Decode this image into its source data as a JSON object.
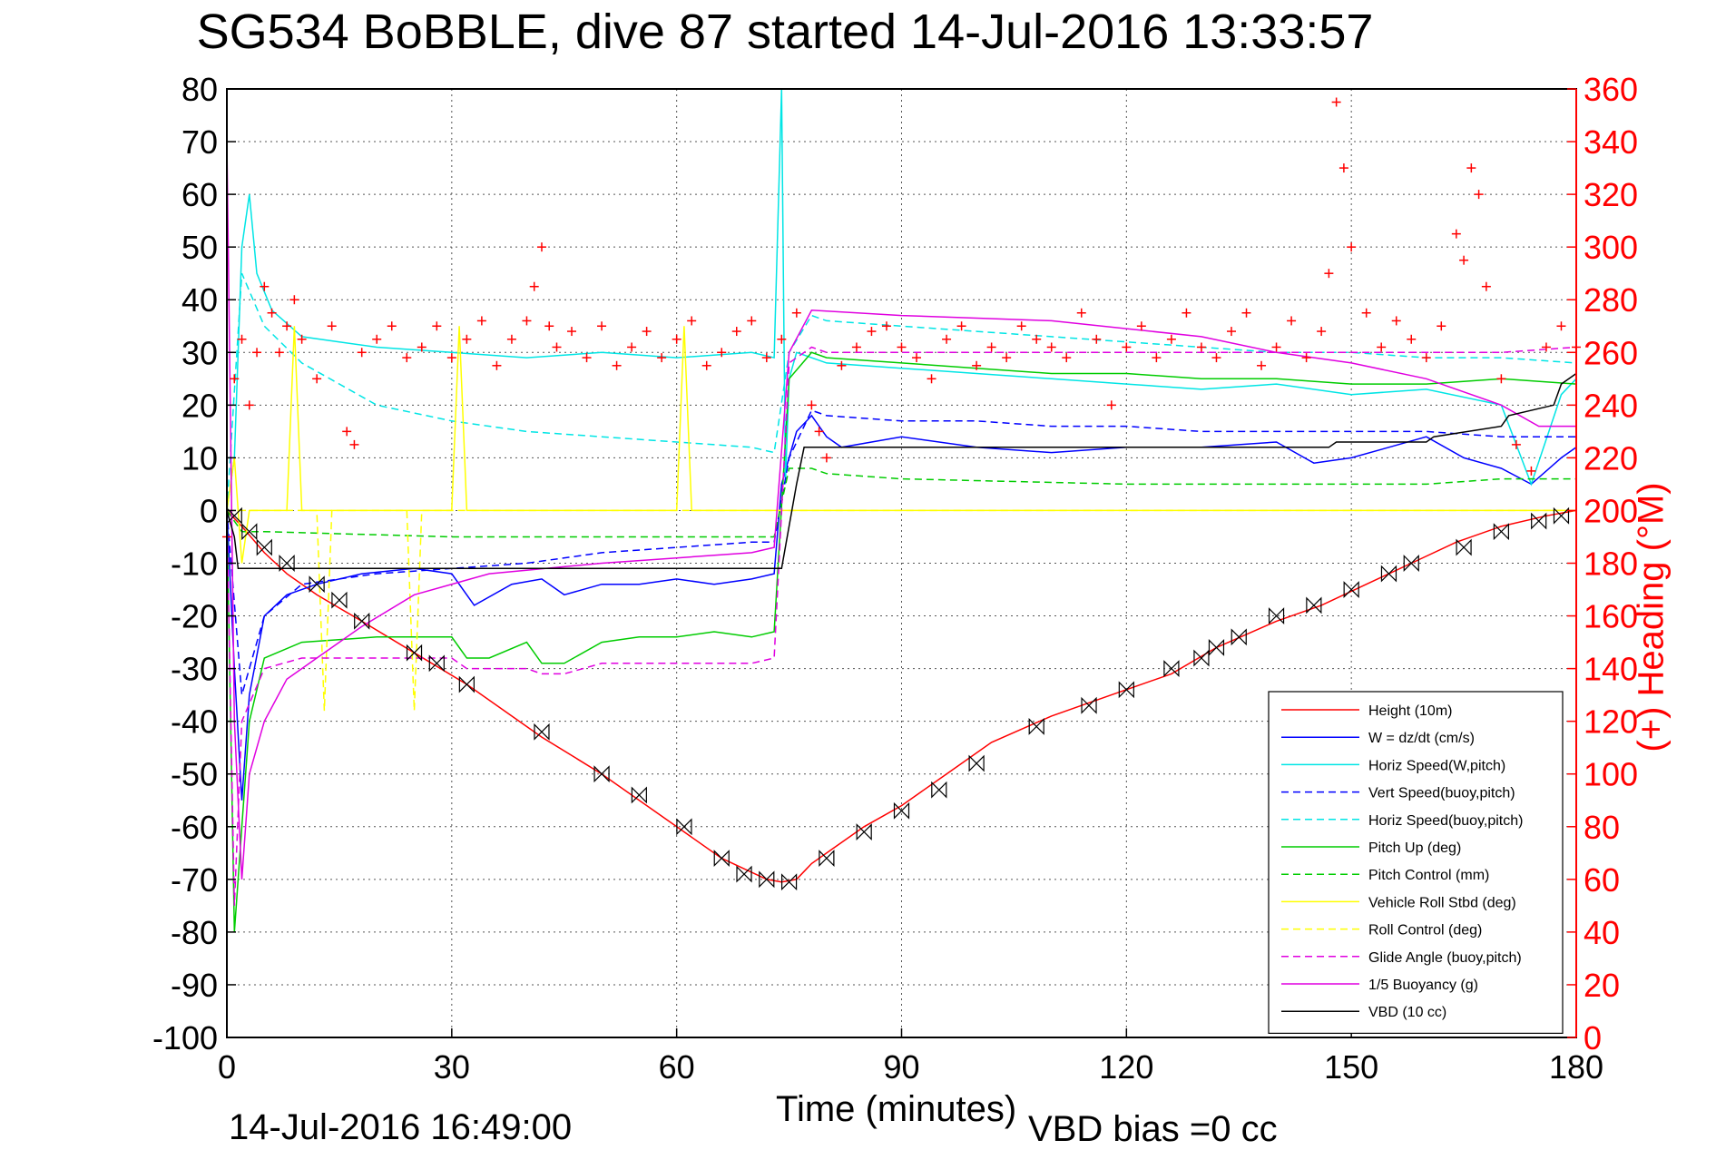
{
  "chart_data": {
    "type": "line",
    "title": "SG534 BoBBLE, dive 87 started 14-Jul-2016 13:33:57",
    "xlabel": "Time (minutes)",
    "ylabel_right": "(+) Heading (°M)",
    "xlim": [
      0,
      180
    ],
    "ylim": [
      -100,
      80
    ],
    "y2lim": [
      0,
      360
    ],
    "grid": true,
    "legend_position": "bottom-right",
    "x_ticks": [
      "0",
      "30",
      "60",
      "90",
      "120",
      "150",
      "180"
    ],
    "y_ticks": [
      "80",
      "70",
      "60",
      "50",
      "40",
      "30",
      "20",
      "10",
      "0",
      "-10",
      "-20",
      "-30",
      "-40",
      "-50",
      "-60",
      "-70",
      "-80",
      "-90",
      "-100"
    ],
    "y2_ticks": [
      "360",
      "340",
      "320",
      "300",
      "280",
      "260",
      "240",
      "220",
      "200",
      "180",
      "160",
      "140",
      "120",
      "100",
      "80",
      "60",
      "40",
      "20",
      "0"
    ],
    "footer_left": "14-Jul-2016 16:49:00",
    "footer_right": "VBD bias =0 cc",
    "colors": {
      "heading": "#ff0000",
      "axis": "#000000",
      "grid": "#888888"
    },
    "series": [
      {
        "name": "Height (10m)",
        "color": "#ff0000",
        "style": "solid",
        "x": [
          0,
          2,
          5,
          8,
          12,
          18,
          25,
          32,
          42,
          50,
          60,
          66,
          72,
          74,
          76,
          78,
          81,
          85,
          90,
          96,
          102,
          110,
          118,
          126,
          132,
          140,
          146,
          152,
          158,
          164,
          170,
          176,
          180
        ],
        "values": [
          0,
          -3,
          -8,
          -12,
          -16,
          -21,
          -27,
          -33,
          -43,
          -50,
          -60,
          -66,
          -70,
          -70.5,
          -70,
          -67,
          -64,
          -60,
          -56,
          -50,
          -44,
          -39,
          -35,
          -31,
          -26,
          -21,
          -18,
          -14,
          -10,
          -6,
          -3,
          -1,
          0
        ]
      },
      {
        "name": "W = dz/dt (cm/s)",
        "color": "#0000ff",
        "style": "solid",
        "x": [
          0,
          1,
          2,
          3,
          5,
          8,
          12,
          18,
          25,
          30,
          33,
          38,
          42,
          45,
          50,
          55,
          60,
          65,
          70,
          73,
          74,
          76,
          78,
          80,
          82,
          86,
          90,
          100,
          110,
          120,
          130,
          140,
          145,
          150,
          155,
          160,
          165,
          170,
          174,
          178,
          180
        ],
        "values": [
          0,
          -30,
          -55,
          -35,
          -20,
          -16,
          -14,
          -12,
          -11,
          -12,
          -18,
          -14,
          -13,
          -16,
          -14,
          -14,
          -13,
          -14,
          -13,
          -12,
          5,
          15,
          18,
          14,
          12,
          13,
          14,
          12,
          11,
          12,
          12,
          13,
          9,
          10,
          12,
          14,
          10,
          8,
          5,
          10,
          12
        ]
      },
      {
        "name": "Horiz Speed(W,pitch)",
        "color": "#00e5e5",
        "style": "solid",
        "x": [
          0,
          1,
          2,
          3,
          4,
          6,
          10,
          15,
          20,
          30,
          40,
          50,
          60,
          70,
          73,
          74,
          74.5,
          75,
          76,
          80,
          90,
          100,
          110,
          120,
          130,
          140,
          150,
          160,
          170,
          174,
          178,
          180
        ],
        "values": [
          0,
          10,
          50,
          60,
          45,
          38,
          33,
          32,
          31,
          30,
          29,
          30,
          29,
          30,
          29,
          80,
          5,
          25,
          30,
          28,
          27,
          26,
          25,
          24,
          23,
          24,
          22,
          23,
          20,
          5,
          22,
          25
        ]
      },
      {
        "name": "Vert Speed(buoy,pitch)",
        "color": "#0000ff",
        "style": "dashed",
        "x": [
          0,
          2,
          5,
          10,
          20,
          30,
          40,
          50,
          60,
          70,
          73,
          75,
          78,
          80,
          90,
          100,
          110,
          120,
          130,
          140,
          150,
          160,
          170,
          180
        ],
        "values": [
          0,
          -35,
          -20,
          -14,
          -12,
          -11,
          -10,
          -8,
          -7,
          -6,
          -6,
          10,
          19,
          18,
          17,
          17,
          16,
          16,
          15,
          15,
          15,
          15,
          14,
          14
        ]
      },
      {
        "name": "Horiz Speed(buoy,pitch)",
        "color": "#00e5e5",
        "style": "dashed",
        "x": [
          0,
          2,
          5,
          10,
          20,
          30,
          40,
          50,
          60,
          70,
          73,
          75,
          78,
          80,
          90,
          100,
          110,
          120,
          130,
          140,
          150,
          160,
          170,
          180
        ],
        "values": [
          0,
          45,
          35,
          28,
          20,
          17,
          15,
          14,
          13,
          12,
          11,
          30,
          37,
          36,
          35,
          34,
          33,
          32,
          31,
          30,
          30,
          29,
          29,
          28
        ]
      },
      {
        "name": "Pitch Up (deg)",
        "color": "#00cc00",
        "style": "solid",
        "x": [
          0,
          1,
          2,
          3,
          5,
          10,
          20,
          30,
          32,
          35,
          40,
          42,
          45,
          50,
          55,
          60,
          65,
          70,
          73,
          75,
          78,
          80,
          90,
          100,
          110,
          120,
          130,
          140,
          150,
          160,
          170,
          180
        ],
        "values": [
          0,
          -80,
          -60,
          -40,
          -28,
          -25,
          -24,
          -24,
          -28,
          -28,
          -25,
          -29,
          -29,
          -25,
          -24,
          -24,
          -23,
          -24,
          -23,
          25,
          30,
          29,
          28,
          27,
          26,
          26,
          25,
          25,
          24,
          24,
          25,
          24
        ]
      },
      {
        "name": "Pitch Control (mm)",
        "color": "#00cc00",
        "style": "dashed",
        "x": [
          0,
          2,
          5,
          30,
          60,
          73,
          75,
          78,
          80,
          90,
          120,
          150,
          160,
          170,
          180
        ],
        "values": [
          0,
          -4,
          -4,
          -5,
          -5,
          -5,
          8,
          8,
          7,
          6,
          5,
          5,
          5,
          6,
          6
        ]
      },
      {
        "name": "Vehicle Roll Stbd (deg)",
        "color": "#ffff00",
        "style": "solid",
        "x": [
          0,
          1,
          2,
          3,
          8,
          9,
          10,
          30,
          31,
          32,
          60,
          61,
          62,
          73,
          74,
          75,
          100,
          120,
          140,
          150,
          160,
          170,
          180
        ],
        "values": [
          0,
          10,
          -10,
          0,
          0,
          35,
          0,
          0,
          35,
          0,
          0,
          35,
          0,
          0,
          0,
          0,
          0,
          0,
          0,
          0,
          0,
          0,
          0
        ]
      },
      {
        "name": "Roll Control (deg)",
        "color": "#ffff00",
        "style": "dashed",
        "x": [
          0,
          12,
          13,
          14,
          24,
          25,
          26,
          73,
          75,
          140,
          150,
          160,
          170,
          180
        ],
        "values": [
          0,
          0,
          -38,
          0,
          0,
          -38,
          0,
          0,
          0,
          0,
          0,
          0,
          0,
          0
        ]
      },
      {
        "name": "Glide Angle (buoy,pitch)",
        "color": "#e000e0",
        "style": "dashed",
        "x": [
          0,
          1,
          2,
          5,
          10,
          20,
          30,
          32,
          40,
          42,
          45,
          50,
          60,
          70,
          73,
          75,
          78,
          80,
          90,
          100,
          120,
          140,
          160,
          170,
          180
        ],
        "values": [
          0,
          -75,
          -40,
          -30,
          -28,
          -28,
          -28,
          -30,
          -30,
          -31,
          -31,
          -29,
          -29,
          -29,
          -28,
          28,
          31,
          30,
          30,
          30,
          30,
          30,
          30,
          30,
          31
        ]
      },
      {
        "name": "1/5 Buoyancy (g)",
        "color": "#e000e0",
        "style": "solid",
        "x": [
          0,
          1,
          2,
          3,
          5,
          8,
          12,
          18,
          25,
          35,
          50,
          60,
          70,
          73,
          75,
          78,
          90,
          110,
          130,
          140,
          150,
          160,
          170,
          175,
          180
        ],
        "values": [
          70,
          -40,
          -70,
          -50,
          -40,
          -32,
          -28,
          -22,
          -16,
          -12,
          -10,
          -9,
          -8,
          -7,
          30,
          38,
          37,
          36,
          33,
          30,
          28,
          25,
          20,
          16,
          16
        ]
      },
      {
        "name": "VBD (10 cc)",
        "color": "#000000",
        "style": "solid",
        "x": [
          0,
          1,
          1.5,
          2,
          73,
          74,
          76,
          77,
          105,
          106,
          147,
          148,
          160,
          161,
          170,
          171,
          177,
          178,
          180
        ],
        "values": [
          0,
          -5,
          -11,
          -11,
          -11,
          -11,
          5,
          12,
          12,
          12,
          12,
          13,
          13,
          14,
          16,
          18,
          20,
          24,
          26
        ]
      }
    ],
    "heading": {
      "name": "(+) Heading (°M)",
      "axis": "right",
      "marker": "+",
      "color": "#ff0000",
      "x": [
        0,
        1,
        2,
        3,
        4,
        5,
        6,
        7,
        8,
        9,
        10,
        12,
        14,
        16,
        17,
        18,
        20,
        22,
        24,
        26,
        28,
        30,
        32,
        34,
        36,
        38,
        40,
        41,
        42,
        43,
        44,
        46,
        48,
        50,
        52,
        54,
        56,
        58,
        60,
        62,
        64,
        66,
        68,
        70,
        72,
        74,
        76,
        78,
        79,
        80,
        82,
        84,
        86,
        88,
        90,
        92,
        94,
        96,
        98,
        100,
        102,
        104,
        106,
        108,
        110,
        112,
        114,
        116,
        118,
        120,
        122,
        124,
        126,
        128,
        130,
        132,
        134,
        136,
        138,
        140,
        142,
        144,
        146,
        147,
        148,
        149,
        150,
        152,
        154,
        156,
        158,
        160,
        162,
        164,
        165,
        166,
        167,
        168,
        170,
        172,
        174,
        176,
        178,
        180
      ],
      "values": [
        190,
        250,
        265,
        240,
        260,
        285,
        275,
        260,
        270,
        280,
        265,
        250,
        270,
        230,
        225,
        260,
        265,
        270,
        258,
        262,
        270,
        258,
        265,
        272,
        255,
        265,
        272,
        285,
        300,
        270,
        262,
        268,
        258,
        270,
        255,
        262,
        268,
        258,
        265,
        272,
        255,
        260,
        268,
        272,
        258,
        265,
        275,
        240,
        230,
        220,
        255,
        262,
        268,
        270,
        262,
        258,
        250,
        265,
        270,
        255,
        262,
        258,
        270,
        265,
        262,
        258,
        275,
        265,
        240,
        262,
        270,
        258,
        265,
        275,
        262,
        258,
        268,
        275,
        255,
        262,
        272,
        258,
        268,
        290,
        355,
        330,
        300,
        275,
        262,
        272,
        265,
        258,
        270,
        305,
        295,
        330,
        320,
        285,
        250,
        225,
        215,
        262,
        270,
        262
      ]
    },
    "height_markers": {
      "x": [
        1,
        3,
        5,
        8,
        12,
        15,
        18,
        25,
        28,
        32,
        42,
        50,
        55,
        61,
        66,
        69,
        72,
        75,
        80,
        85,
        90,
        95,
        100,
        108,
        115,
        120,
        126,
        130,
        132,
        135,
        140,
        145,
        150,
        155,
        158,
        165,
        170,
        175,
        178
      ],
      "values": [
        -1,
        -4,
        -7,
        -10,
        -14,
        -17,
        -21,
        -27,
        -29,
        -33,
        -42,
        -50,
        -54,
        -60,
        -66,
        -69,
        -70,
        -70.5,
        -66,
        -61,
        -57,
        -53,
        -48,
        -41,
        -37,
        -34,
        -30,
        -28,
        -26,
        -24,
        -20,
        -18,
        -15,
        -12,
        -10,
        -7,
        -4,
        -2,
        -1
      ]
    }
  },
  "legend": {
    "items": [
      {
        "label": "Height (10m)",
        "color": "#ff0000",
        "style": "solid"
      },
      {
        "label": "W = dz/dt (cm/s)",
        "color": "#0000ff",
        "style": "solid"
      },
      {
        "label": "Horiz Speed(W,pitch)",
        "color": "#00e5e5",
        "style": "solid"
      },
      {
        "label": "Vert Speed(buoy,pitch)",
        "color": "#0000ff",
        "style": "dashed"
      },
      {
        "label": "Horiz Speed(buoy,pitch)",
        "color": "#00e5e5",
        "style": "dashed"
      },
      {
        "label": "Pitch Up (deg)",
        "color": "#00cc00",
        "style": "solid"
      },
      {
        "label": "Pitch Control (mm)",
        "color": "#00cc00",
        "style": "dashed"
      },
      {
        "label": "Vehicle Roll Stbd (deg)",
        "color": "#ffff00",
        "style": "solid"
      },
      {
        "label": "Roll Control (deg)",
        "color": "#ffff00",
        "style": "dashed"
      },
      {
        "label": "Glide Angle (buoy,pitch)",
        "color": "#e000e0",
        "style": "dashed"
      },
      {
        "label": "1/5 Buoyancy (g)",
        "color": "#e000e0",
        "style": "solid"
      },
      {
        "label": "VBD (10 cc)",
        "color": "#000000",
        "style": "solid"
      }
    ]
  }
}
